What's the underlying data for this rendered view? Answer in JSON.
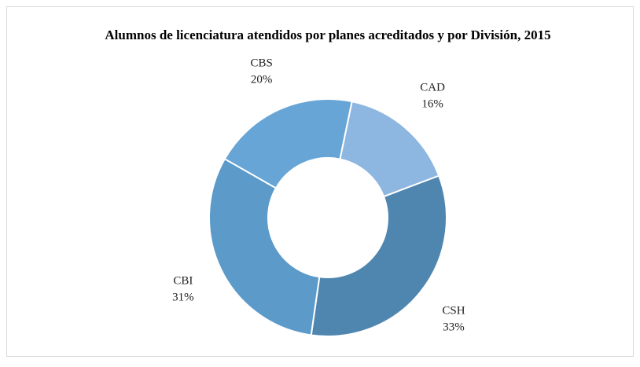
{
  "chart_data": {
    "type": "pie",
    "title": "Alumnos de licenciatura atendidos por planes acreditados y por División, 2015",
    "categories": [
      "CAD",
      "CSH",
      "CBI",
      "CBS"
    ],
    "values": [
      16,
      33,
      31,
      20
    ],
    "value_labels": [
      "16%",
      "33%",
      "31%",
      "20%"
    ],
    "colors": [
      "#8db6e0",
      "#4f86b0",
      "#5b9ac9",
      "#67a5d6"
    ]
  }
}
